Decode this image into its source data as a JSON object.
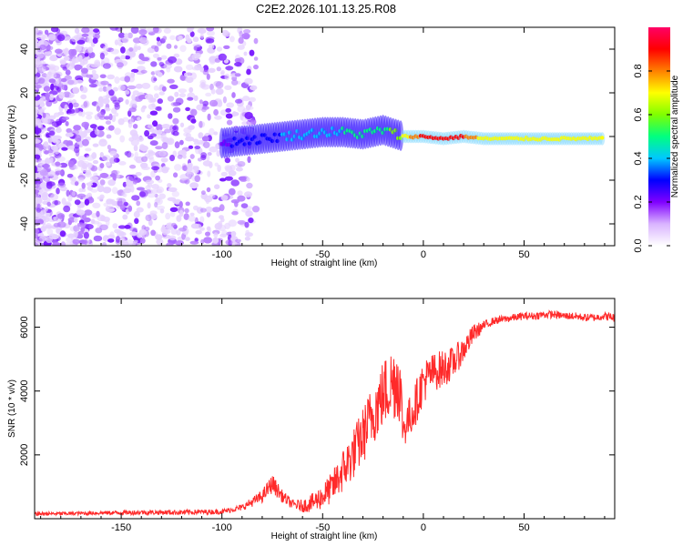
{
  "page": {
    "title": "C2E2.2026.101.13.25.R08"
  },
  "chart_data": [
    {
      "type": "heatmap",
      "title": "C2E2.2026.101.13.25.R08",
      "xlabel": "Height of straight line (km)",
      "ylabel": "Frequency (Hz)",
      "xlim": [
        -193,
        95
      ],
      "ylim": [
        -50,
        50
      ],
      "xticks": [
        -150,
        -100,
        -50,
        0,
        50
      ],
      "xtick_labels": [
        "-150",
        "-100",
        "-50",
        "0",
        "50"
      ],
      "yticks": [
        -40,
        -20,
        0,
        20,
        40
      ],
      "ytick_labels": [
        "-40",
        "-20",
        "0",
        "20",
        "40"
      ],
      "colorbar": {
        "label": "Normalized spectral amplitude",
        "range": [
          0,
          1
        ],
        "ticks": [
          0.0,
          0.2,
          0.4,
          0.6,
          0.8
        ],
        "tick_labels": [
          "0.0",
          "0.2",
          "0.4",
          "0.6",
          "0.8"
        ],
        "colormap": [
          "#ffffff",
          "#d9b3ff",
          "#8000ff",
          "#0000ff",
          "#00c8ff",
          "#00ff80",
          "#80ff00",
          "#ffff00",
          "#ff8000",
          "#ff0000",
          "#ff0066"
        ]
      },
      "signal_track": [
        {
          "x": -100,
          "f": -3,
          "a": 0.18
        },
        {
          "x": -90,
          "f": -2,
          "a": 0.22
        },
        {
          "x": -80,
          "f": -1,
          "a": 0.28
        },
        {
          "x": -70,
          "f": 0,
          "a": 0.3
        },
        {
          "x": -60,
          "f": 1,
          "a": 0.35
        },
        {
          "x": -50,
          "f": 2,
          "a": 0.38
        },
        {
          "x": -40,
          "f": 2,
          "a": 0.4
        },
        {
          "x": -30,
          "f": 1,
          "a": 0.42
        },
        {
          "x": -20,
          "f": 3,
          "a": 0.45
        },
        {
          "x": -10,
          "f": 0,
          "a": 0.62
        },
        {
          "x": 0,
          "f": 0,
          "a": 0.85
        },
        {
          "x": 10,
          "f": -1,
          "a": 0.88
        },
        {
          "x": 20,
          "f": 0,
          "a": 0.8
        },
        {
          "x": 30,
          "f": -1,
          "a": 0.65
        },
        {
          "x": 50,
          "f": -1,
          "a": 0.66
        },
        {
          "x": 70,
          "f": -1,
          "a": 0.63
        },
        {
          "x": 90,
          "f": -1,
          "a": 0.6
        }
      ]
    },
    {
      "type": "line",
      "xlabel": "Height of straight line (km)",
      "ylabel": "SNR (10 * v/v)",
      "xlim": [
        -193,
        95
      ],
      "ylim": [
        0,
        6900
      ],
      "xticks": [
        -150,
        -100,
        -50,
        0,
        50
      ],
      "xtick_labels": [
        "-150",
        "-100",
        "-50",
        "0",
        "50"
      ],
      "yticks": [
        2000,
        4000,
        6000
      ],
      "ytick_labels": [
        "2000",
        "4000",
        "6000"
      ],
      "series": [
        {
          "name": "SNR",
          "color": "#ff2a2a",
          "x": [
            -193,
            -180,
            -160,
            -140,
            -120,
            -100,
            -90,
            -80,
            -75,
            -70,
            -65,
            -60,
            -55,
            -50,
            -45,
            -40,
            -35,
            -30,
            -25,
            -20,
            -15,
            -12,
            -10,
            -5,
            0,
            5,
            10,
            15,
            20,
            25,
            30,
            35,
            40,
            45,
            50,
            55,
            60,
            65,
            70,
            75,
            80,
            85,
            90,
            95
          ],
          "values": [
            150,
            160,
            180,
            200,
            200,
            220,
            350,
            700,
            1100,
            700,
            450,
            400,
            500,
            700,
            1000,
            1500,
            2000,
            2600,
            3300,
            3900,
            4300,
            4400,
            2800,
            3400,
            4300,
            4600,
            4700,
            4900,
            5300,
            5800,
            6050,
            6200,
            6250,
            6300,
            6350,
            6350,
            6400,
            6400,
            6350,
            6350,
            6300,
            6300,
            6350,
            6300
          ],
          "spread": [
            60,
            60,
            60,
            80,
            80,
            80,
            100,
            200,
            300,
            200,
            150,
            200,
            300,
            400,
            500,
            700,
            800,
            900,
            1000,
            1100,
            1200,
            1400,
            600,
            700,
            700,
            600,
            600,
            500,
            400,
            300,
            150,
            120,
            120,
            120,
            120,
            120,
            120,
            120,
            120,
            120,
            120,
            120,
            120,
            150
          ]
        }
      ]
    }
  ]
}
